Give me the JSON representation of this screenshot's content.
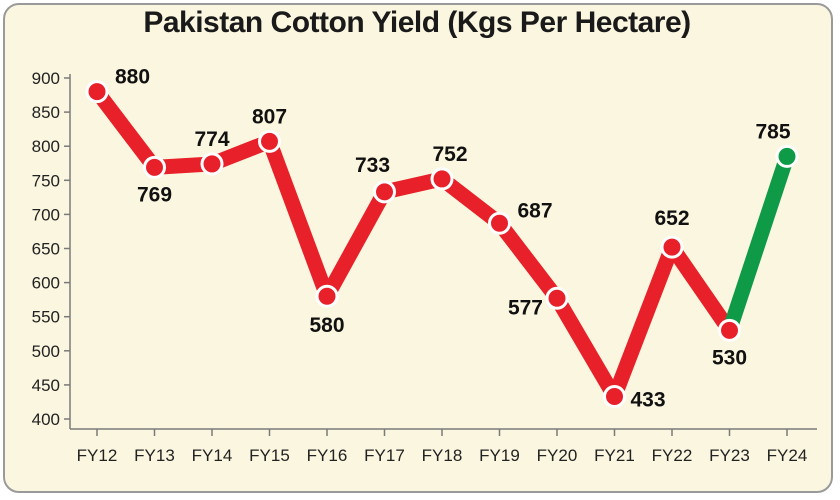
{
  "chart_data": {
    "type": "line",
    "title": "Pakistan Cotton Yield (Kgs Per Hectare)",
    "categories": [
      "FY12",
      "FY13",
      "FY14",
      "FY15",
      "FY16",
      "FY17",
      "FY18",
      "FY19",
      "FY20",
      "FY21",
      "FY22",
      "FY23",
      "FY24"
    ],
    "values": [
      880,
      769,
      774,
      807,
      580,
      733,
      752,
      687,
      577,
      433,
      652,
      530,
      785
    ],
    "data_labels": [
      "880",
      "769",
      "774",
      "807",
      "580",
      "733",
      "752",
      "687",
      "577",
      "433",
      "652",
      "530",
      "785"
    ],
    "ylim": [
      400,
      900
    ],
    "yticks": [
      400,
      450,
      500,
      550,
      600,
      650,
      700,
      750,
      800,
      850,
      900
    ],
    "ytick_labels": [
      "400",
      "450",
      "500",
      "550",
      "600",
      "650",
      "700",
      "750",
      "800",
      "850",
      "900"
    ],
    "grid": false,
    "colors": {
      "line": "#e8202a",
      "highlight_line": "#0f9a48",
      "background": "#fbf6df",
      "axis": "#7a7a7a"
    },
    "highlight_last_segment": true
  }
}
